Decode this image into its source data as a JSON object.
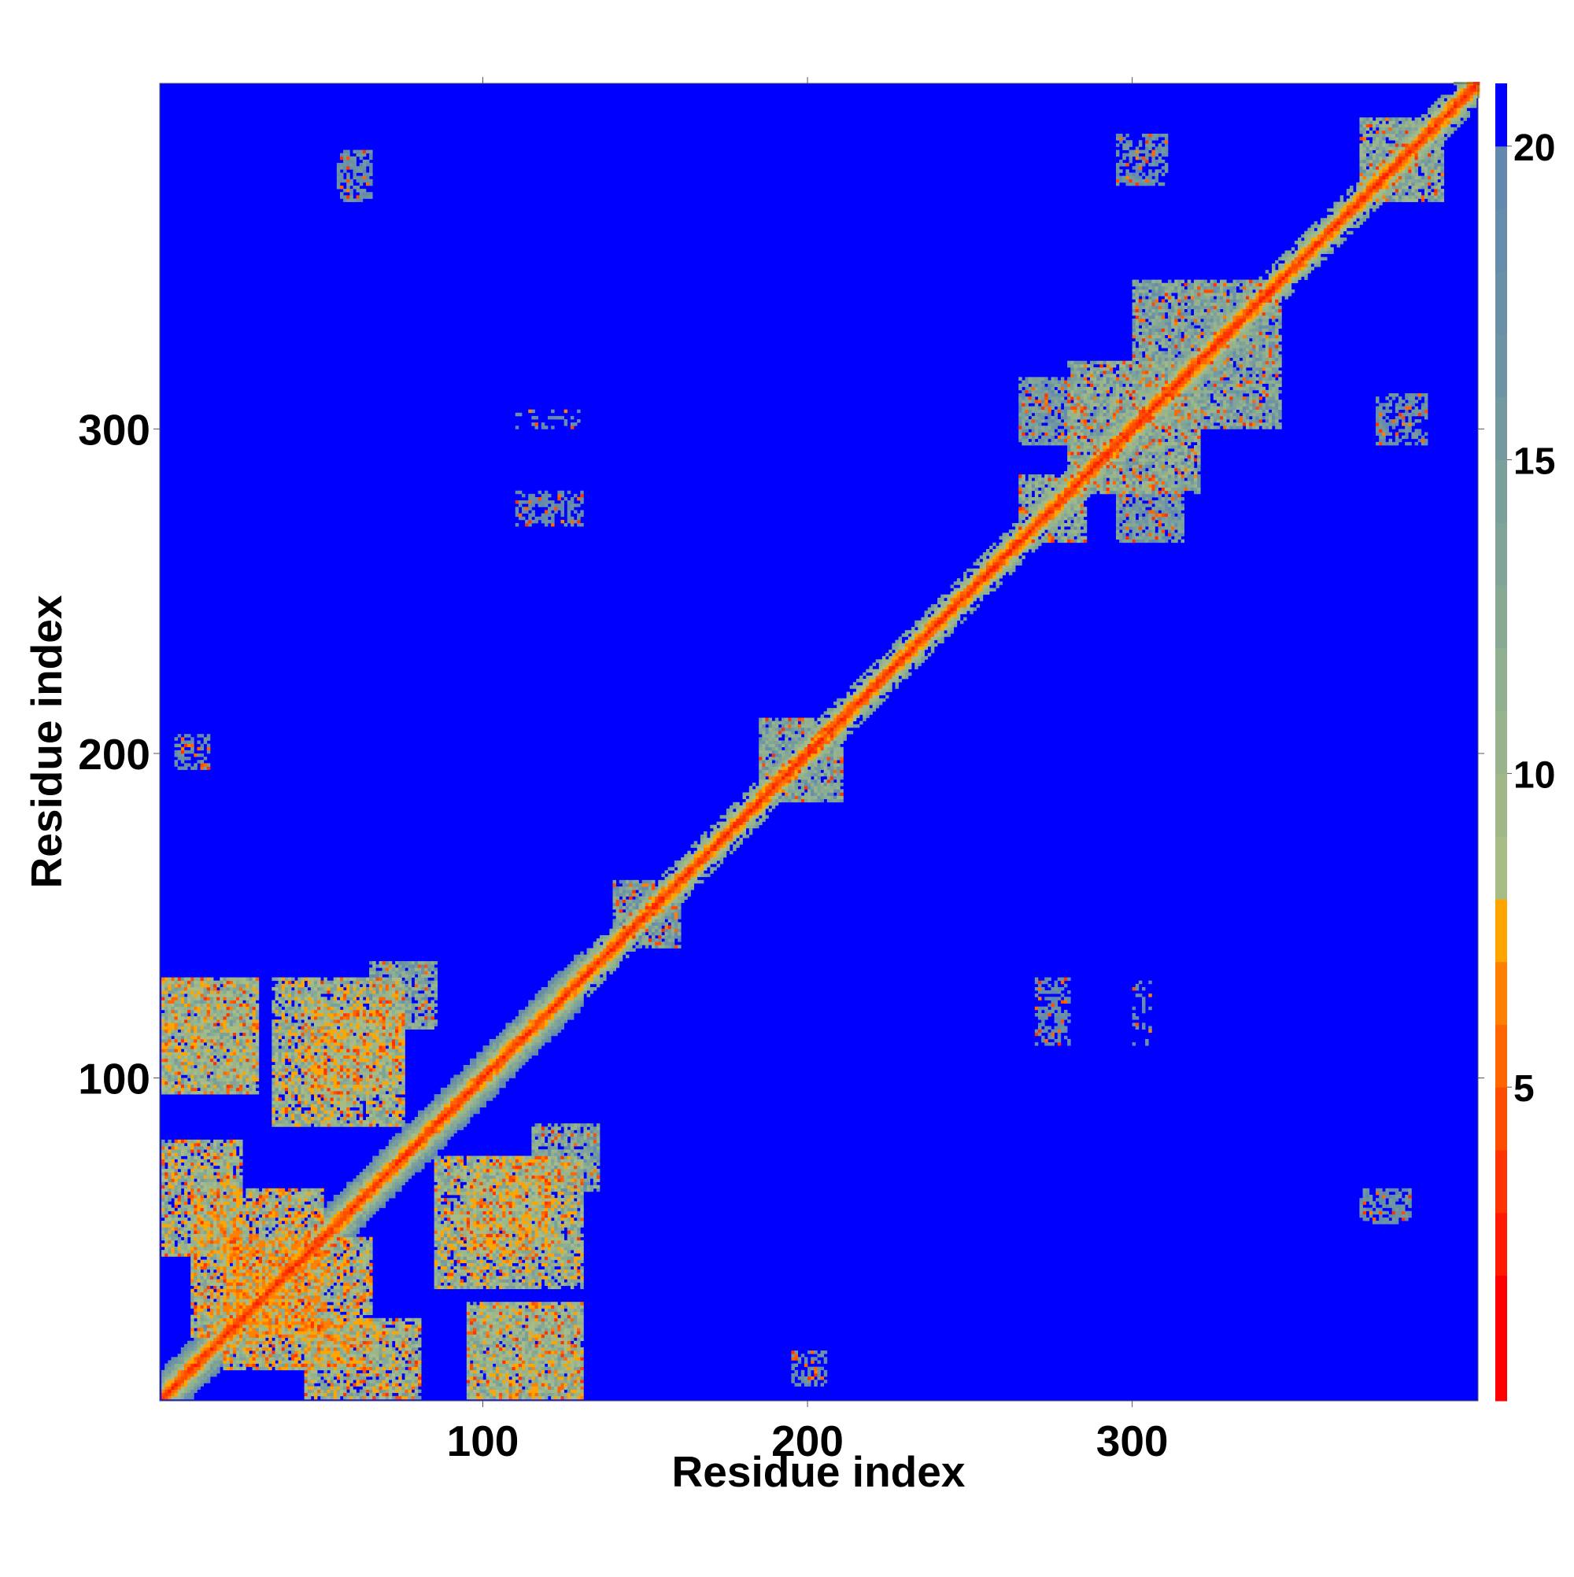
{
  "chart_data": {
    "type": "heatmap",
    "title": "",
    "xlabel": "Residue index",
    "ylabel": "Residue index",
    "xlim": [
      1,
      406
    ],
    "ylim": [
      1,
      406
    ],
    "x_ticks": [
      100,
      200,
      300
    ],
    "y_ticks": [
      100,
      200,
      300
    ],
    "grid": false,
    "matrix": "symmetric residue-residue distance map",
    "colorbar": {
      "ticks": [
        5,
        10,
        15,
        20
      ],
      "range": [
        0,
        21
      ],
      "cap_above": 20,
      "colors": {
        "near": "#ff0000",
        "close": "#ff4000",
        "mid": "#ffa500",
        "light": "#a0b888",
        "far": "#6a90b0",
        "max": "#0000ff"
      },
      "levels": [
        {
          "upper": 2,
          "color": "#ff0000"
        },
        {
          "upper": 3,
          "color": "#ff1a00"
        },
        {
          "upper": 4,
          "color": "#ff3300"
        },
        {
          "upper": 5,
          "color": "#ff4d00"
        },
        {
          "upper": 6,
          "color": "#ff6600"
        },
        {
          "upper": 7,
          "color": "#ff8000"
        },
        {
          "upper": 8,
          "color": "#ffa500"
        },
        {
          "upper": 9,
          "color": "#a8bc88"
        },
        {
          "upper": 10,
          "color": "#a0b888"
        },
        {
          "upper": 11,
          "color": "#98b48c"
        },
        {
          "upper": 12,
          "color": "#90b090"
        },
        {
          "upper": 13,
          "color": "#88aa94"
        },
        {
          "upper": 14,
          "color": "#80a498"
        },
        {
          "upper": 15,
          "color": "#7aa09c"
        },
        {
          "upper": 16,
          "color": "#749aa0"
        },
        {
          "upper": 17,
          "color": "#6e94a4"
        },
        {
          "upper": 18,
          "color": "#6a90a8"
        },
        {
          "upper": 19,
          "color": "#668cac"
        },
        {
          "upper": 20,
          "color": "#6288b0"
        },
        {
          "upper": 21,
          "color": "#0000ff"
        }
      ]
    },
    "contact_regions": [
      {
        "x": [
          1,
          406
        ],
        "y": [
          1,
          406
        ],
        "kind": "diagonal",
        "value": 2,
        "halo": 7
      },
      {
        "x": [
          1,
          130
        ],
        "y": [
          1,
          130
        ],
        "kind": "diagonal",
        "value": 4,
        "halo": 14
      },
      {
        "x": [
          1,
          30
        ],
        "y": [
          95,
          130
        ],
        "kind": "block",
        "value": 9
      },
      {
        "x": [
          95,
          130
        ],
        "y": [
          1,
          30
        ],
        "kind": "block",
        "value": 9
      },
      {
        "x": [
          1,
          25
        ],
        "y": [
          45,
          80
        ],
        "kind": "block",
        "value": 9
      },
      {
        "x": [
          45,
          80
        ],
        "y": [
          1,
          25
        ],
        "kind": "block",
        "value": 9
      },
      {
        "x": [
          35,
          75
        ],
        "y": [
          85,
          130
        ],
        "kind": "block",
        "value": 9
      },
      {
        "x": [
          85,
          130
        ],
        "y": [
          35,
          75
        ],
        "kind": "block",
        "value": 9
      },
      {
        "x": [
          20,
          65
        ],
        "y": [
          10,
          50
        ],
        "kind": "block",
        "value": 8
      },
      {
        "x": [
          10,
          50
        ],
        "y": [
          20,
          65
        ],
        "kind": "block",
        "value": 8
      },
      {
        "x": [
          95,
          120
        ],
        "y": [
          45,
          75
        ],
        "kind": "block",
        "value": 9
      },
      {
        "x": [
          45,
          75
        ],
        "y": [
          95,
          120
        ],
        "kind": "block",
        "value": 9
      },
      {
        "x": [
          95,
          130
        ],
        "y": [
          1,
          30
        ],
        "kind": "block",
        "value": 10
      },
      {
        "x": [
          115,
          135
        ],
        "y": [
          65,
          85
        ],
        "kind": "block",
        "value": 12
      },
      {
        "x": [
          65,
          85
        ],
        "y": [
          115,
          135
        ],
        "kind": "block",
        "value": 12
      },
      {
        "x": [
          185,
          210
        ],
        "y": [
          185,
          210
        ],
        "kind": "block",
        "value": 12
      },
      {
        "x": [
          140,
          160
        ],
        "y": [
          140,
          160
        ],
        "kind": "block",
        "value": 13
      },
      {
        "x": [
          265,
          285
        ],
        "y": [
          265,
          285
        ],
        "kind": "block",
        "value": 11
      },
      {
        "x": [
          280,
          320
        ],
        "y": [
          280,
          320
        ],
        "kind": "block",
        "value": 11
      },
      {
        "x": [
          300,
          345
        ],
        "y": [
          300,
          345
        ],
        "kind": "block",
        "value": 12
      },
      {
        "x": [
          370,
          395
        ],
        "y": [
          370,
          395
        ],
        "kind": "block",
        "value": 11
      },
      {
        "x": [
          265,
          285
        ],
        "y": [
          295,
          315
        ],
        "kind": "block",
        "value": 14
      },
      {
        "x": [
          295,
          315
        ],
        "y": [
          265,
          285
        ],
        "kind": "block",
        "value": 14
      },
      {
        "x": [
          295,
          310
        ],
        "y": [
          375,
          390
        ],
        "kind": "block",
        "value": 17
      },
      {
        "x": [
          375,
          390
        ],
        "y": [
          295,
          310
        ],
        "kind": "block",
        "value": 17
      },
      {
        "x": [
          370,
          385
        ],
        "y": [
          55,
          65
        ],
        "kind": "block",
        "value": 17
      },
      {
        "x": [
          55,
          65
        ],
        "y": [
          370,
          385
        ],
        "kind": "block",
        "value": 17
      },
      {
        "x": [
          5,
          15
        ],
        "y": [
          195,
          205
        ],
        "kind": "block",
        "value": 17
      },
      {
        "x": [
          195,
          205
        ],
        "y": [
          5,
          15
        ],
        "kind": "block",
        "value": 17
      },
      {
        "x": [
          270,
          280
        ],
        "y": [
          110,
          130
        ],
        "kind": "block",
        "value": 18
      },
      {
        "x": [
          110,
          130
        ],
        "y": [
          270,
          280
        ],
        "kind": "block",
        "value": 18
      },
      {
        "x": [
          300,
          305
        ],
        "y": [
          110,
          130
        ],
        "kind": "block",
        "value": 18
      }
    ]
  }
}
